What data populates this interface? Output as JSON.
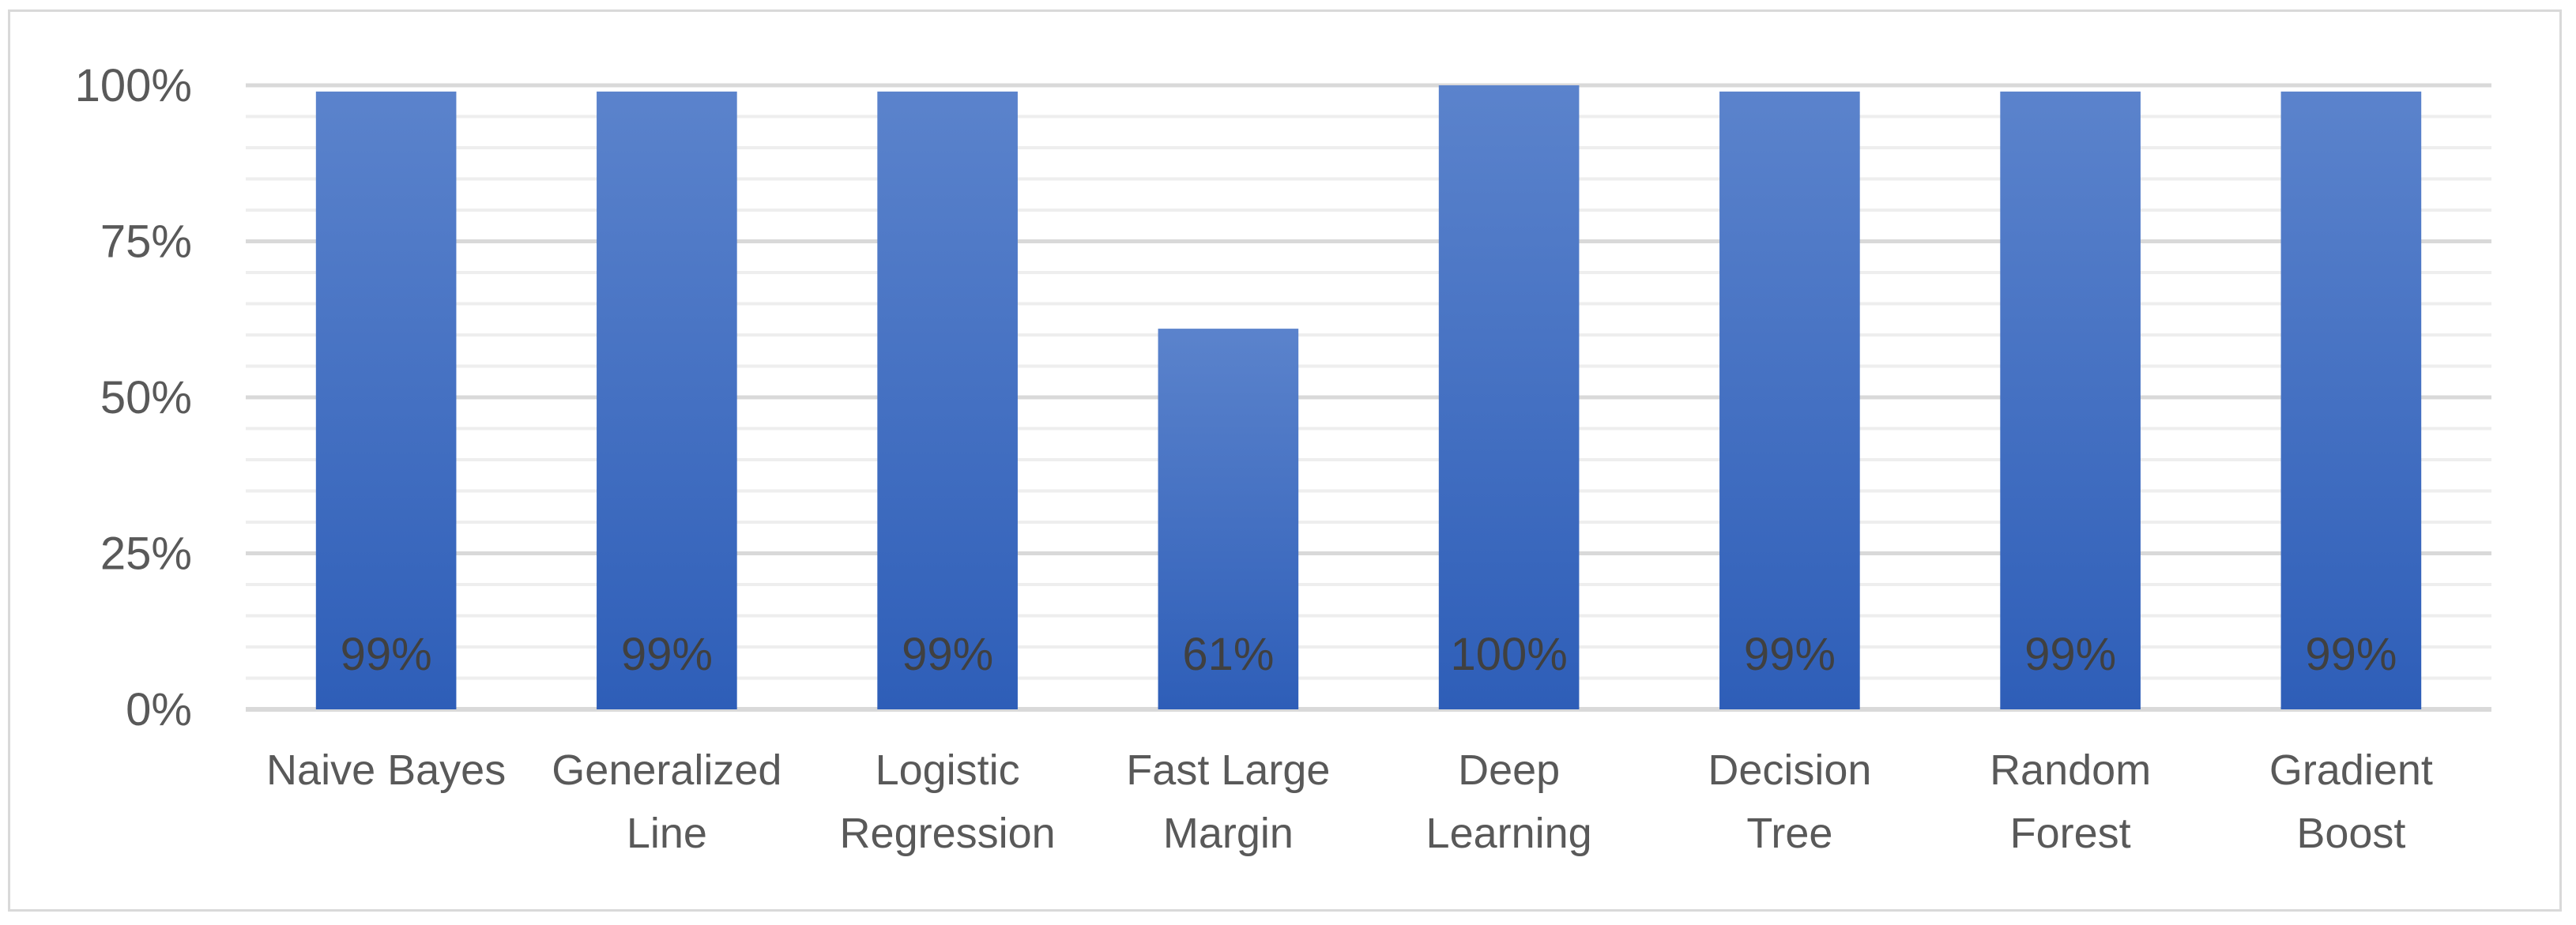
{
  "chart_data": {
    "type": "bar",
    "categories": [
      [
        "Naive Bayes"
      ],
      [
        "Generalized",
        "Line"
      ],
      [
        "Logistic",
        "Regression"
      ],
      [
        "Fast Large",
        "Margin"
      ],
      [
        "Deep",
        "Learning"
      ],
      [
        "Decision",
        "Tree"
      ],
      [
        "Random",
        "Forest"
      ],
      [
        "Gradient",
        "Boost"
      ]
    ],
    "values": [
      99,
      99,
      99,
      61,
      100,
      99,
      99,
      99
    ],
    "data_labels": [
      "99%",
      "99%",
      "99%",
      "61%",
      "100%",
      "99%",
      "99%",
      "99%"
    ],
    "yticks": [
      "0%",
      "25%",
      "50%",
      "75%",
      "100%"
    ],
    "ylim": [
      0,
      100
    ],
    "major_step": 25,
    "minor_step": 5,
    "grid": true,
    "bar_color_top": "#5b83cc",
    "bar_color_bottom": "#2e5eb8",
    "grid_major_color": "#d9d9d9",
    "grid_minor_color": "#eeeeee",
    "axis_color": "#d9d9d9"
  }
}
